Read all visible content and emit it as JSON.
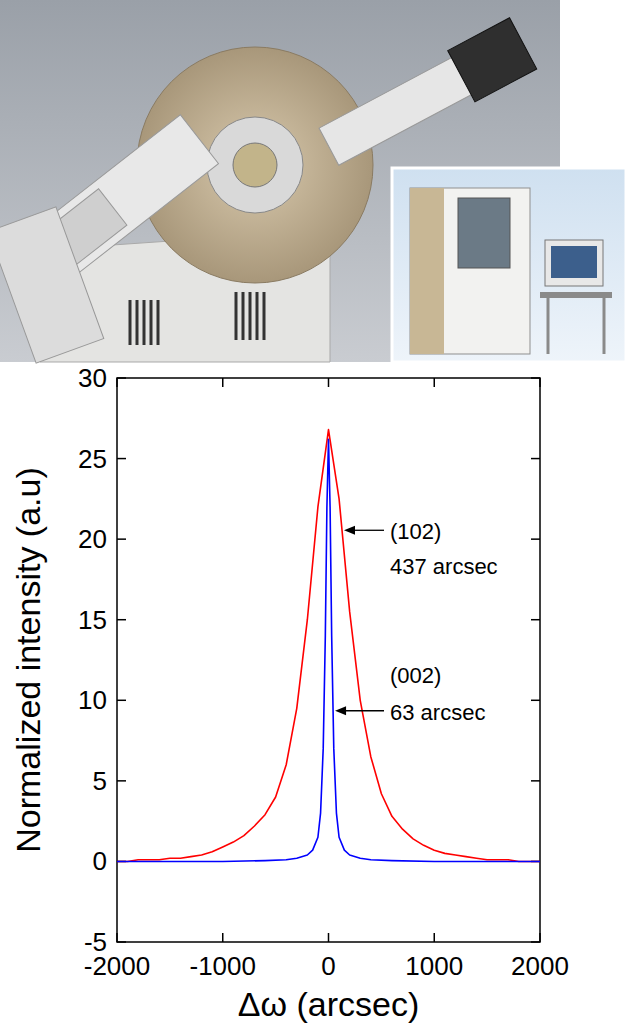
{
  "chart_data": {
    "type": "line",
    "x_label": "Δω (arcsec)",
    "y_label": "Normalized intensity (a.u)",
    "xlim": [
      -2000,
      2000
    ],
    "xticks": [
      -2000,
      -1000,
      0,
      1000,
      2000
    ],
    "ylim": [
      -5,
      30
    ],
    "yticks": [
      -5,
      0,
      5,
      10,
      15,
      20,
      25,
      30
    ],
    "grid": false,
    "series": [
      {
        "name": "(102)",
        "annotation": "437 arcsec",
        "color": "#ff0000",
        "x": [
          -2000,
          -1900,
          -1800,
          -1700,
          -1600,
          -1500,
          -1400,
          -1300,
          -1200,
          -1100,
          -1000,
          -900,
          -800,
          -700,
          -600,
          -500,
          -400,
          -300,
          -200,
          -100,
          0,
          100,
          200,
          300,
          400,
          500,
          600,
          700,
          800,
          900,
          1000,
          1100,
          1200,
          1300,
          1400,
          1500,
          1600,
          1700,
          1800,
          1900,
          2000
        ],
        "values": [
          0,
          0,
          0.1,
          0.1,
          0.1,
          0.2,
          0.2,
          0.3,
          0.4,
          0.6,
          0.9,
          1.2,
          1.6,
          2.2,
          2.9,
          4.0,
          6.0,
          9.5,
          15.0,
          22.0,
          26.8,
          22.5,
          15.5,
          10.0,
          6.5,
          4.2,
          2.8,
          2.0,
          1.4,
          1.0,
          0.7,
          0.5,
          0.4,
          0.3,
          0.2,
          0.1,
          0.1,
          0.1,
          0,
          0,
          0
        ]
      },
      {
        "name": "(002)",
        "annotation": "63 arcsec",
        "color": "#0000ff",
        "x": [
          -2000,
          -1000,
          -600,
          -400,
          -300,
          -200,
          -150,
          -100,
          -75,
          -50,
          -30,
          -15,
          0,
          15,
          30,
          50,
          75,
          100,
          150,
          200,
          300,
          400,
          600,
          1000,
          2000
        ],
        "values": [
          0,
          0,
          0.05,
          0.1,
          0.2,
          0.4,
          0.7,
          1.5,
          3.0,
          7.0,
          14.0,
          22.0,
          26.2,
          22.0,
          14.0,
          7.0,
          3.0,
          1.5,
          0.7,
          0.4,
          0.2,
          0.1,
          0.05,
          0,
          0
        ]
      }
    ]
  }
}
